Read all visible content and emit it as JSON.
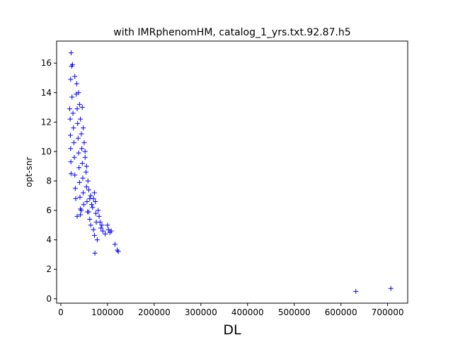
{
  "chart_data": {
    "type": "scatter",
    "title": "with IMRphenomHM, catalog_1_yrs.txt.92.87.h5",
    "xlabel": "DL",
    "ylabel": "opt-snr",
    "xlim": [
      -9000,
      743000
    ],
    "ylim": [
      -0.3,
      17.5
    ],
    "xticks": [
      0,
      100000,
      200000,
      300000,
      400000,
      500000,
      600000,
      700000
    ],
    "yticks": [
      0,
      2,
      4,
      6,
      8,
      10,
      12,
      14,
      16
    ],
    "grid": false,
    "legend": "none",
    "marker": "+",
    "color": "#0000ff",
    "points": [
      [
        22000,
        16.7
      ],
      [
        23000,
        15.8
      ],
      [
        25000,
        15.9
      ],
      [
        21000,
        14.9
      ],
      [
        30000,
        15.1
      ],
      [
        34000,
        14.6
      ],
      [
        19000,
        12.9
      ],
      [
        20000,
        12.2
      ],
      [
        20500,
        11.1
      ],
      [
        21000,
        10.2
      ],
      [
        21500,
        9.3
      ],
      [
        22000,
        8.5
      ],
      [
        24000,
        13.7
      ],
      [
        26000,
        12.6
      ],
      [
        27000,
        11.6
      ],
      [
        28000,
        10.6
      ],
      [
        29000,
        9.6
      ],
      [
        30000,
        8.4
      ],
      [
        31000,
        7.5
      ],
      [
        32000,
        6.8
      ],
      [
        33000,
        13.9
      ],
      [
        35000,
        12.9
      ],
      [
        36000,
        11.9
      ],
      [
        37000,
        10.9
      ],
      [
        38000,
        9.9
      ],
      [
        39000,
        8.9
      ],
      [
        40000,
        7.9
      ],
      [
        41000,
        6.9
      ],
      [
        42000,
        6.1
      ],
      [
        38000,
        14.0
      ],
      [
        40000,
        13.2
      ],
      [
        42000,
        12.2
      ],
      [
        44000,
        11.2
      ],
      [
        45000,
        10.2
      ],
      [
        46000,
        9.2
      ],
      [
        47000,
        8.2
      ],
      [
        48000,
        7.2
      ],
      [
        49000,
        6.4
      ],
      [
        35000,
        5.6
      ],
      [
        42000,
        5.7
      ],
      [
        44000,
        6.0
      ],
      [
        46000,
        13.0
      ],
      [
        48000,
        11.6
      ],
      [
        50000,
        10.6
      ],
      [
        52000,
        9.6
      ],
      [
        54000,
        8.6
      ],
      [
        55000,
        7.6
      ],
      [
        56000,
        6.6
      ],
      [
        57000,
        5.9
      ],
      [
        52000,
        10.0
      ],
      [
        55000,
        9.0
      ],
      [
        58000,
        8.0
      ],
      [
        60000,
        7.4
      ],
      [
        62000,
        6.8
      ],
      [
        64000,
        7.0
      ],
      [
        66000,
        6.4
      ],
      [
        60000,
        5.9
      ],
      [
        62000,
        5.4
      ],
      [
        64000,
        5.0
      ],
      [
        68000,
        6.2
      ],
      [
        70000,
        6.8
      ],
      [
        72000,
        7.2
      ],
      [
        74000,
        6.6
      ],
      [
        75000,
        5.8
      ],
      [
        76000,
        5.2
      ],
      [
        70000,
        4.7
      ],
      [
        72000,
        4.3
      ],
      [
        78000,
        4.0
      ],
      [
        80000,
        6.0
      ],
      [
        82000,
        5.6
      ],
      [
        84000,
        5.2
      ],
      [
        86000,
        4.8
      ],
      [
        88000,
        5.0
      ],
      [
        90000,
        4.6
      ],
      [
        95000,
        4.4
      ],
      [
        100000,
        5.0
      ],
      [
        102000,
        4.7
      ],
      [
        105000,
        4.5
      ],
      [
        108000,
        4.6
      ],
      [
        73000,
        3.1
      ],
      [
        116000,
        3.7
      ],
      [
        121000,
        3.3
      ],
      [
        123000,
        3.2
      ],
      [
        632000,
        0.5
      ],
      [
        707000,
        0.7
      ]
    ]
  }
}
